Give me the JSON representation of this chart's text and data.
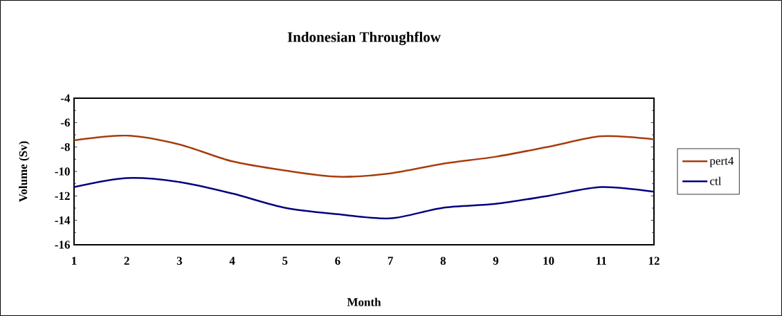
{
  "chart_data": {
    "type": "line",
    "title": "Indonesian Throughflow",
    "xlabel": "Month",
    "ylabel": "Volume (Sv)",
    "x": [
      1,
      2,
      3,
      4,
      5,
      6,
      7,
      8,
      9,
      10,
      11,
      12
    ],
    "series": [
      {
        "name": "pert4",
        "color": "#a83c0c",
        "values": [
          -7.45,
          -7.06,
          -7.79,
          -9.17,
          -9.92,
          -10.43,
          -10.15,
          -9.36,
          -8.79,
          -7.98,
          -7.12,
          -7.37
        ]
      },
      {
        "name": "ctl",
        "color": "#000080",
        "values": [
          -11.28,
          -10.54,
          -10.86,
          -11.8,
          -12.97,
          -13.5,
          -13.84,
          -12.97,
          -12.65,
          -11.99,
          -11.28,
          -11.66
        ]
      }
    ],
    "xlim": [
      1,
      12
    ],
    "xticks": [
      1,
      2,
      3,
      4,
      5,
      6,
      7,
      8,
      9,
      10,
      11,
      12
    ],
    "ylim": [
      -16,
      -4
    ],
    "yticks": [
      -16,
      -14,
      -12,
      -10,
      -8,
      -6,
      -4
    ],
    "grid": false,
    "legend": "right",
    "marker": "none",
    "line_style": "solid"
  }
}
